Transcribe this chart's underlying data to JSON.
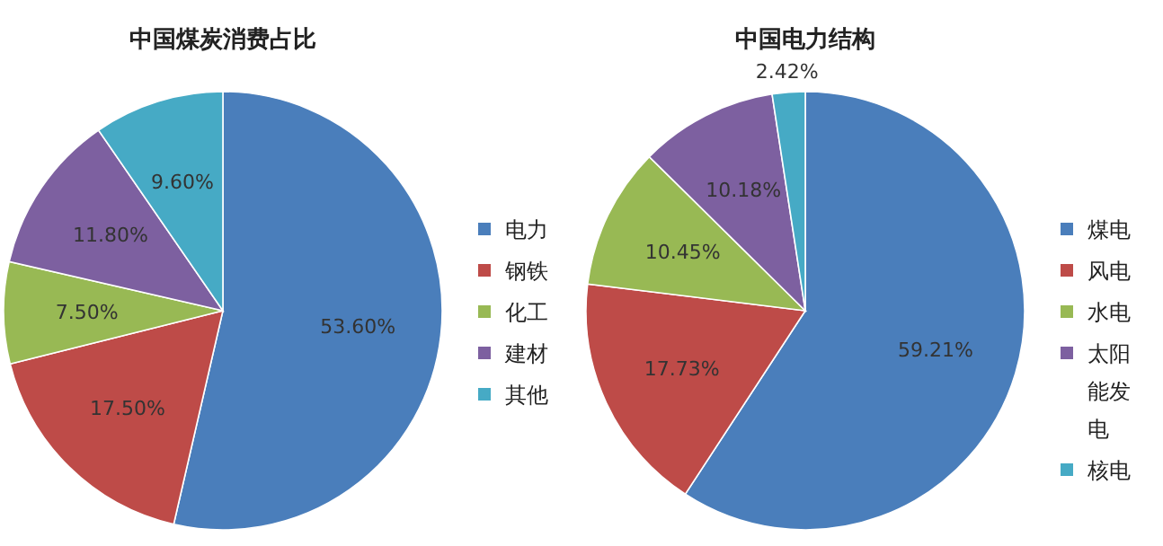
{
  "chart_data": [
    {
      "type": "pie",
      "title": "中国煤炭消费占比",
      "categories": [
        "电力",
        "钢铁",
        "化工",
        "建材",
        "其他"
      ],
      "values": [
        53.6,
        17.5,
        7.5,
        11.8,
        9.6
      ],
      "value_labels": [
        "53.60%",
        "17.50%",
        "7.50%",
        "11.80%",
        "9.60%"
      ],
      "colors": [
        "#4a7ebb",
        "#be4b48",
        "#98b954",
        "#7d60a0",
        "#46aac5"
      ],
      "legend": "right"
    },
    {
      "type": "pie",
      "title": "中国电力结构",
      "categories": [
        "煤电",
        "风电",
        "水电",
        "太阳能发电",
        "核电"
      ],
      "values": [
        59.21,
        17.73,
        10.45,
        10.18,
        2.42
      ],
      "value_labels": [
        "59.21%",
        "17.73%",
        "10.45%",
        "10.18%",
        "2.42%"
      ],
      "colors": [
        "#4a7ebb",
        "#be4b48",
        "#98b954",
        "#7d60a0",
        "#46aac5"
      ],
      "legend": "right"
    }
  ]
}
